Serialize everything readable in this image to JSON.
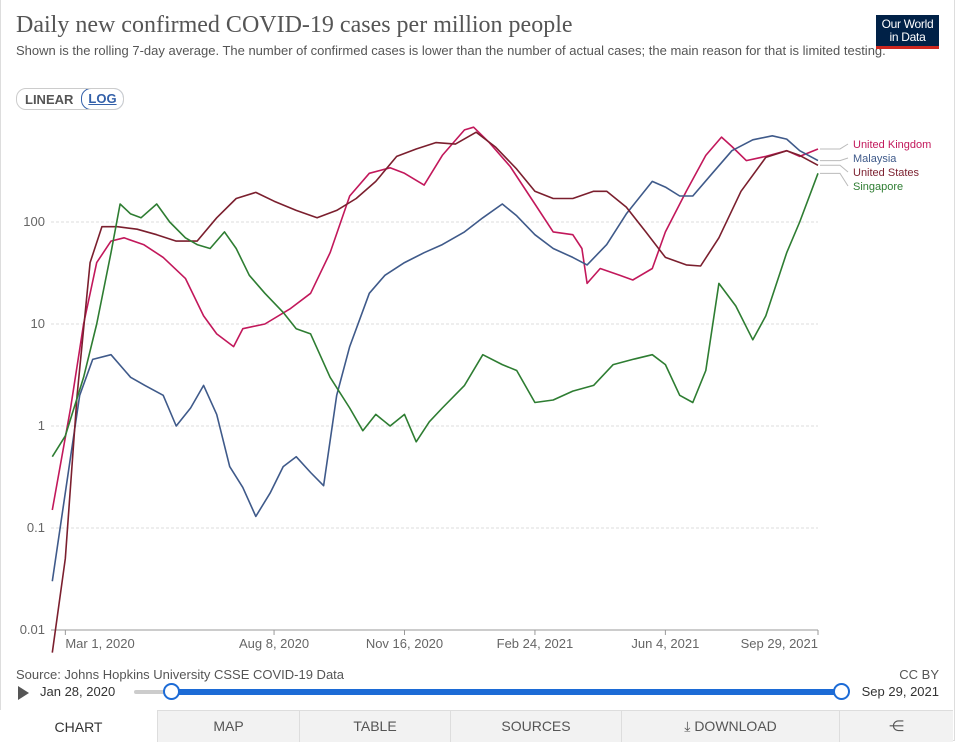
{
  "header": {
    "title": "Daily new confirmed COVID-19 cases per million people",
    "subtitle": "Shown is the rolling 7-day average. The number of confirmed cases is lower than the number of actual cases; the main reason for that is limited testing.",
    "logo_line1": "Our World",
    "logo_line2": "in Data",
    "logo_color": "#002147",
    "logo_accent": "#ce261e"
  },
  "controls": {
    "linear_label": "LINEAR",
    "log_label": "LOG",
    "active_scale": "LOG"
  },
  "chart_data": {
    "type": "line",
    "title": "Daily new confirmed COVID-19 cases per million people",
    "yscale": "log",
    "ylim": [
      0.01,
      1000
    ],
    "ytick_labels": [
      "0.01",
      "0.1",
      "1",
      "10",
      "100"
    ],
    "ytick_values": [
      0.01,
      0.1,
      1,
      10,
      100
    ],
    "x_domain": [
      "2020-02-19",
      "2021-09-29"
    ],
    "xtick_labels": [
      "Mar 1, 2020",
      "Aug 8, 2020",
      "Nov 16, 2020",
      "Feb 24, 2021",
      "Jun 4, 2021",
      "Sep 29, 2021"
    ],
    "xtick_dates": [
      "2020-03-01",
      "2020-08-08",
      "2020-11-16",
      "2021-02-24",
      "2021-06-04",
      "2021-09-29"
    ],
    "series": [
      {
        "name": "United Kingdom",
        "color": "#c2185b",
        "points": [
          [
            "2020-02-20",
            0.15
          ],
          [
            "2020-03-05",
            1.5
          ],
          [
            "2020-03-15",
            10
          ],
          [
            "2020-03-25",
            40
          ],
          [
            "2020-04-05",
            65
          ],
          [
            "2020-04-15",
            70
          ],
          [
            "2020-04-30",
            60
          ],
          [
            "2020-05-15",
            45
          ],
          [
            "2020-06-01",
            28
          ],
          [
            "2020-06-15",
            12
          ],
          [
            "2020-06-25",
            8
          ],
          [
            "2020-07-08",
            6
          ],
          [
            "2020-07-15",
            9
          ],
          [
            "2020-08-01",
            10
          ],
          [
            "2020-08-20",
            14
          ],
          [
            "2020-09-05",
            20
          ],
          [
            "2020-09-20",
            50
          ],
          [
            "2020-10-05",
            180
          ],
          [
            "2020-10-20",
            300
          ],
          [
            "2020-11-05",
            340
          ],
          [
            "2020-11-16",
            300
          ],
          [
            "2020-12-01",
            230
          ],
          [
            "2020-12-15",
            450
          ],
          [
            "2021-01-01",
            800
          ],
          [
            "2021-01-08",
            850
          ],
          [
            "2021-01-20",
            600
          ],
          [
            "2021-02-05",
            350
          ],
          [
            "2021-02-24",
            150
          ],
          [
            "2021-03-10",
            80
          ],
          [
            "2021-03-25",
            75
          ],
          [
            "2021-04-01",
            55
          ],
          [
            "2021-04-05",
            25
          ],
          [
            "2021-04-15",
            35
          ],
          [
            "2021-04-30",
            30
          ],
          [
            "2021-05-10",
            27
          ],
          [
            "2021-05-25",
            35
          ],
          [
            "2021-06-04",
            80
          ],
          [
            "2021-06-20",
            200
          ],
          [
            "2021-07-05",
            450
          ],
          [
            "2021-07-17",
            680
          ],
          [
            "2021-07-25",
            550
          ],
          [
            "2021-08-05",
            400
          ],
          [
            "2021-08-20",
            440
          ],
          [
            "2021-09-05",
            500
          ],
          [
            "2021-09-15",
            440
          ],
          [
            "2021-09-29",
            520
          ]
        ]
      },
      {
        "name": "Malaysia",
        "color": "#3f5a8a",
        "points": [
          [
            "2020-02-20",
            0.03
          ],
          [
            "2020-03-05",
            0.5
          ],
          [
            "2020-03-12",
            2
          ],
          [
            "2020-03-22",
            4.5
          ],
          [
            "2020-04-05",
            5
          ],
          [
            "2020-04-20",
            3
          ],
          [
            "2020-05-01",
            2.5
          ],
          [
            "2020-05-15",
            2
          ],
          [
            "2020-05-25",
            1
          ],
          [
            "2020-06-05",
            1.5
          ],
          [
            "2020-06-15",
            2.5
          ],
          [
            "2020-06-25",
            1.3
          ],
          [
            "2020-07-05",
            0.4
          ],
          [
            "2020-07-15",
            0.25
          ],
          [
            "2020-07-25",
            0.13
          ],
          [
            "2020-08-05",
            0.22
          ],
          [
            "2020-08-15",
            0.4
          ],
          [
            "2020-08-25",
            0.5
          ],
          [
            "2020-09-05",
            0.35
          ],
          [
            "2020-09-15",
            0.26
          ],
          [
            "2020-09-25",
            2
          ],
          [
            "2020-10-05",
            6
          ],
          [
            "2020-10-20",
            20
          ],
          [
            "2020-11-01",
            30
          ],
          [
            "2020-11-16",
            40
          ],
          [
            "2020-12-01",
            50
          ],
          [
            "2020-12-15",
            60
          ],
          [
            "2021-01-01",
            80
          ],
          [
            "2021-01-15",
            110
          ],
          [
            "2021-01-30",
            150
          ],
          [
            "2021-02-10",
            115
          ],
          [
            "2021-02-24",
            75
          ],
          [
            "2021-03-10",
            55
          ],
          [
            "2021-03-25",
            45
          ],
          [
            "2021-04-05",
            38
          ],
          [
            "2021-04-20",
            60
          ],
          [
            "2021-05-05",
            120
          ],
          [
            "2021-05-25",
            250
          ],
          [
            "2021-06-04",
            220
          ],
          [
            "2021-06-15",
            180
          ],
          [
            "2021-06-25",
            180
          ],
          [
            "2021-07-10",
            300
          ],
          [
            "2021-07-25",
            500
          ],
          [
            "2021-08-10",
            640
          ],
          [
            "2021-08-25",
            700
          ],
          [
            "2021-09-05",
            650
          ],
          [
            "2021-09-15",
            500
          ],
          [
            "2021-09-29",
            400
          ]
        ]
      },
      {
        "name": "United States",
        "color": "#7b1f2e",
        "points": [
          [
            "2020-02-20",
            0.006
          ],
          [
            "2020-03-01",
            0.05
          ],
          [
            "2020-03-10",
            2
          ],
          [
            "2020-03-20",
            40
          ],
          [
            "2020-03-29",
            90
          ],
          [
            "2020-04-10",
            90
          ],
          [
            "2020-04-25",
            85
          ],
          [
            "2020-05-10",
            75
          ],
          [
            "2020-05-25",
            65
          ],
          [
            "2020-06-10",
            65
          ],
          [
            "2020-06-25",
            110
          ],
          [
            "2020-07-10",
            170
          ],
          [
            "2020-07-25",
            195
          ],
          [
            "2020-08-08",
            160
          ],
          [
            "2020-08-25",
            130
          ],
          [
            "2020-09-10",
            110
          ],
          [
            "2020-09-25",
            130
          ],
          [
            "2020-10-10",
            170
          ],
          [
            "2020-10-25",
            250
          ],
          [
            "2020-11-10",
            440
          ],
          [
            "2020-11-25",
            520
          ],
          [
            "2020-12-10",
            600
          ],
          [
            "2020-12-25",
            580
          ],
          [
            "2021-01-10",
            760
          ],
          [
            "2021-01-25",
            540
          ],
          [
            "2021-02-10",
            330
          ],
          [
            "2021-02-24",
            200
          ],
          [
            "2021-03-10",
            170
          ],
          [
            "2021-03-25",
            170
          ],
          [
            "2021-04-10",
            200
          ],
          [
            "2021-04-20",
            200
          ],
          [
            "2021-05-05",
            140
          ],
          [
            "2021-05-20",
            80
          ],
          [
            "2021-06-04",
            45
          ],
          [
            "2021-06-20",
            38
          ],
          [
            "2021-07-01",
            37
          ],
          [
            "2021-07-15",
            70
          ],
          [
            "2021-08-01",
            200
          ],
          [
            "2021-08-20",
            430
          ],
          [
            "2021-09-05",
            500
          ],
          [
            "2021-09-15",
            450
          ],
          [
            "2021-09-29",
            360
          ]
        ]
      },
      {
        "name": "Singapore",
        "color": "#2e7d32",
        "points": [
          [
            "2020-02-20",
            0.5
          ],
          [
            "2020-03-01",
            0.8
          ],
          [
            "2020-03-15",
            3
          ],
          [
            "2020-03-25",
            10
          ],
          [
            "2020-04-05",
            50
          ],
          [
            "2020-04-12",
            150
          ],
          [
            "2020-04-20",
            120
          ],
          [
            "2020-04-28",
            110
          ],
          [
            "2020-05-10",
            150
          ],
          [
            "2020-05-20",
            100
          ],
          [
            "2020-06-01",
            70
          ],
          [
            "2020-06-10",
            60
          ],
          [
            "2020-06-20",
            55
          ],
          [
            "2020-07-01",
            80
          ],
          [
            "2020-07-10",
            55
          ],
          [
            "2020-07-20",
            30
          ],
          [
            "2020-08-01",
            20
          ],
          [
            "2020-08-15",
            13
          ],
          [
            "2020-08-25",
            9
          ],
          [
            "2020-09-05",
            8
          ],
          [
            "2020-09-20",
            3
          ],
          [
            "2020-10-05",
            1.5
          ],
          [
            "2020-10-15",
            0.9
          ],
          [
            "2020-10-25",
            1.3
          ],
          [
            "2020-11-05",
            1
          ],
          [
            "2020-11-16",
            1.3
          ],
          [
            "2020-11-25",
            0.7
          ],
          [
            "2020-12-05",
            1.1
          ],
          [
            "2020-12-15",
            1.5
          ],
          [
            "2021-01-01",
            2.5
          ],
          [
            "2021-01-15",
            5
          ],
          [
            "2021-01-30",
            4
          ],
          [
            "2021-02-10",
            3.5
          ],
          [
            "2021-02-24",
            1.7
          ],
          [
            "2021-03-10",
            1.8
          ],
          [
            "2021-03-25",
            2.2
          ],
          [
            "2021-04-10",
            2.5
          ],
          [
            "2021-04-25",
            4
          ],
          [
            "2021-05-10",
            4.5
          ],
          [
            "2021-05-25",
            5
          ],
          [
            "2021-06-04",
            4
          ],
          [
            "2021-06-15",
            2
          ],
          [
            "2021-06-25",
            1.7
          ],
          [
            "2021-07-05",
            3.5
          ],
          [
            "2021-07-15",
            25
          ],
          [
            "2021-07-28",
            15
          ],
          [
            "2021-08-10",
            7
          ],
          [
            "2021-08-20",
            12
          ],
          [
            "2021-09-05",
            50
          ],
          [
            "2021-09-15",
            100
          ],
          [
            "2021-09-29",
            300
          ]
        ]
      }
    ]
  },
  "footer": {
    "source": "Source: Johns Hopkins University CSSE COVID-19 Data",
    "license": "CC BY",
    "timeline_start": "Jan 28, 2020",
    "timeline_end": "Sep 29, 2021"
  },
  "tabs": [
    {
      "label": "CHART"
    },
    {
      "label": "MAP"
    },
    {
      "label": "TABLE"
    },
    {
      "label": "SOURCES"
    },
    {
      "label": "DOWNLOAD"
    },
    {
      "label": ""
    }
  ]
}
